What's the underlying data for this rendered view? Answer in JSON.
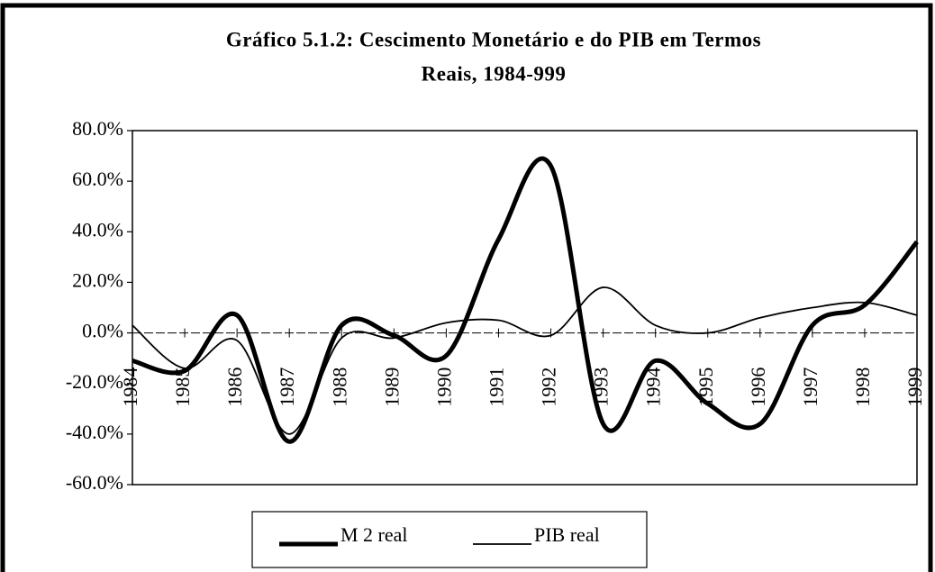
{
  "chart_data": {
    "type": "line",
    "title": [
      "Gráfico 5.1.2: Cescimento Monetário e do PIB em Termos",
      "Reais, 1984-999"
    ],
    "categories": [
      "1984",
      "1985",
      "1986",
      "1987",
      "1988",
      "1989",
      "1990",
      "1991",
      "1992",
      "1993",
      "1994",
      "1995",
      "1996",
      "1997",
      "1998",
      "1999"
    ],
    "series": [
      {
        "name": "M 2 real",
        "color": "#000000",
        "width": 5,
        "values": [
          -11,
          -15,
          7,
          -43,
          3,
          -1,
          -9,
          37,
          66,
          -36,
          -11,
          -28,
          -36,
          3,
          11,
          36
        ]
      },
      {
        "name": "PIB real",
        "color": "#000000",
        "width": 1.8,
        "values": [
          3,
          -14,
          -3,
          -40,
          -2,
          -2,
          4,
          5,
          -1,
          18,
          3,
          0,
          6,
          10,
          12,
          7
        ]
      }
    ],
    "ylim": [
      -60,
      80
    ],
    "yticks": [
      {
        "value": -60,
        "label": "-60.0%"
      },
      {
        "value": -40,
        "label": "-40.0%"
      },
      {
        "value": -20,
        "label": "-20.0%"
      },
      {
        "value": 0,
        "label": "0.0%"
      },
      {
        "value": 20,
        "label": "20.0%"
      },
      {
        "value": 40,
        "label": "40.0%"
      },
      {
        "value": 60,
        "label": "60.0%"
      },
      {
        "value": 80,
        "label": "80.0%"
      }
    ],
    "legend": "bottom"
  }
}
